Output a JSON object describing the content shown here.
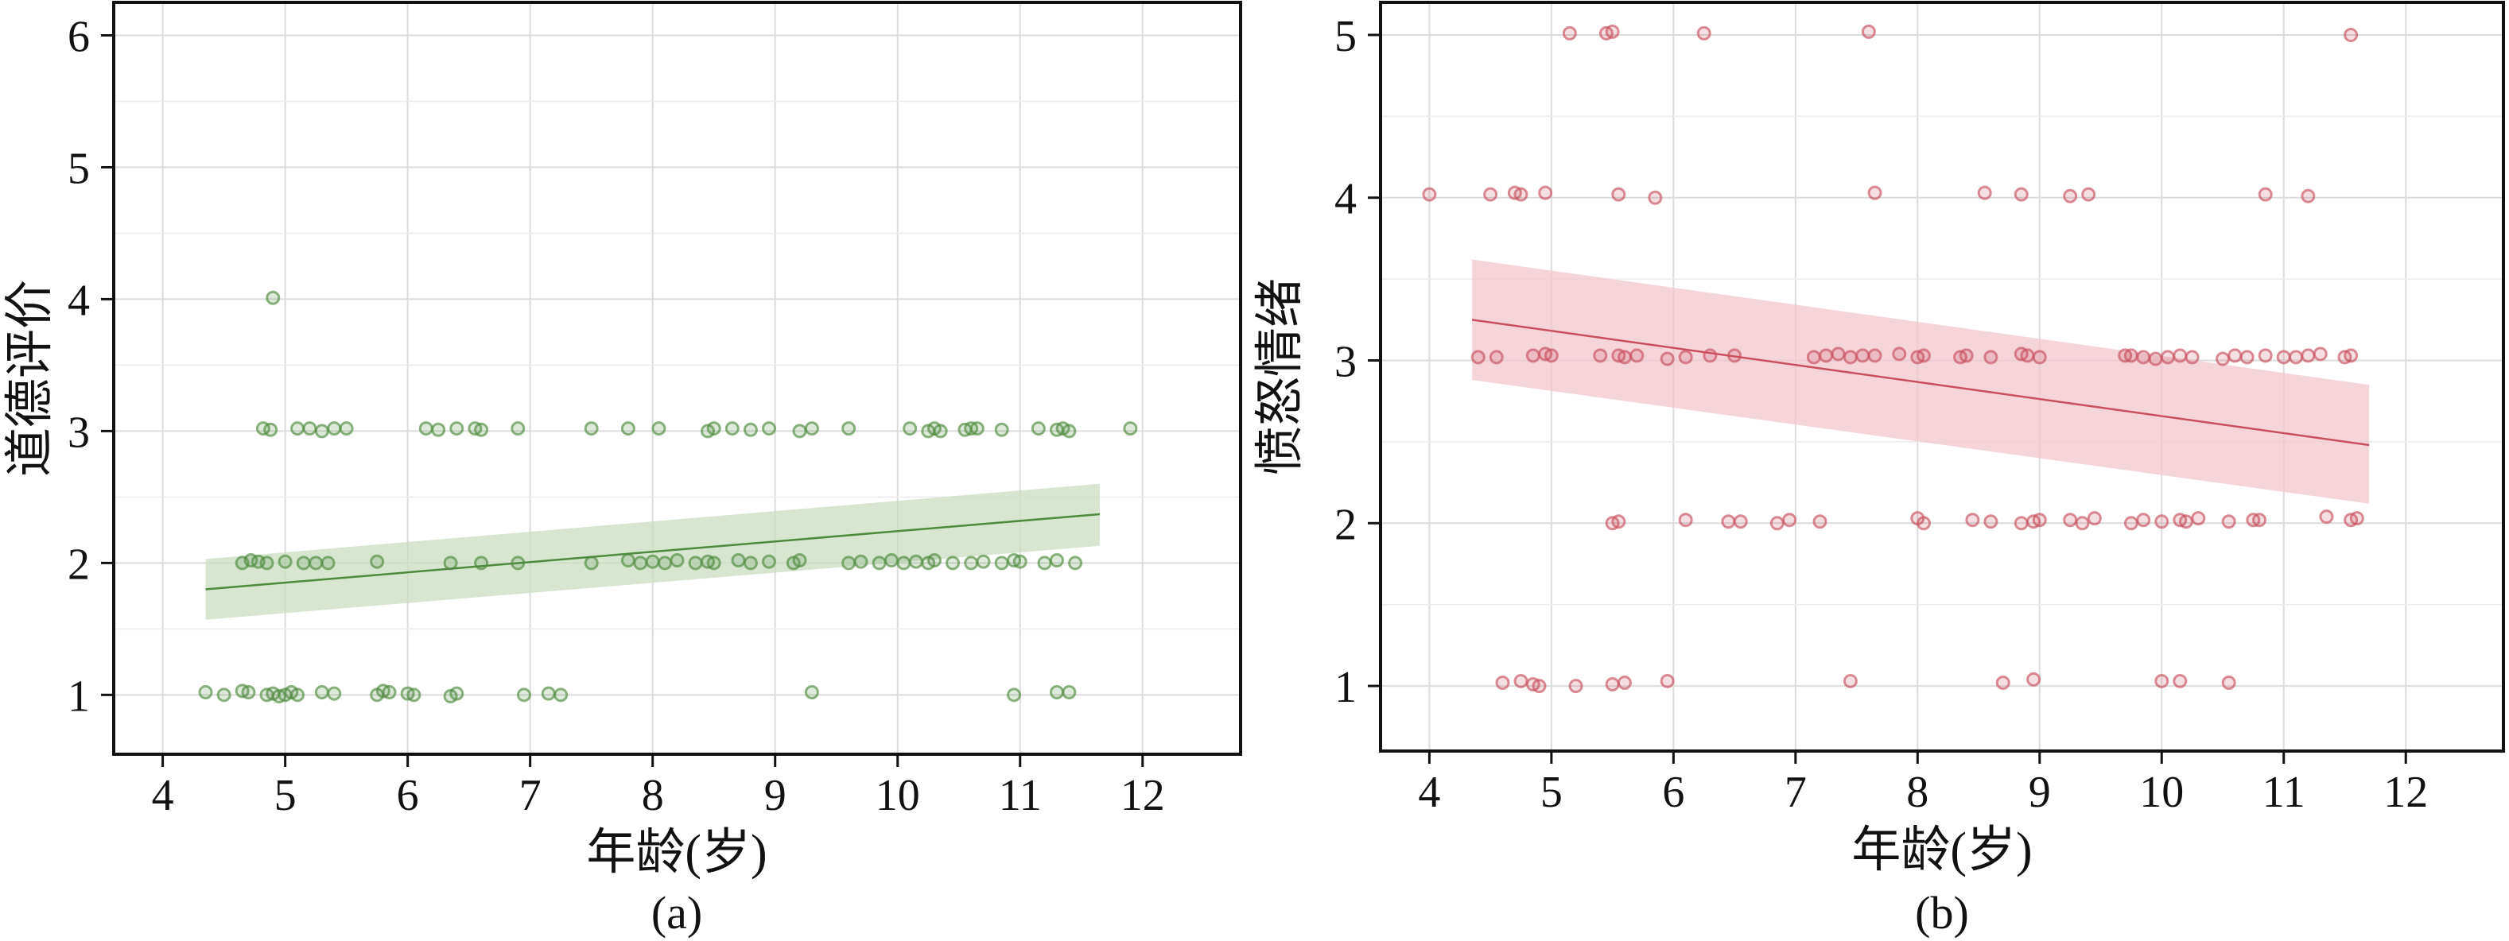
{
  "chart_data": [
    {
      "type": "scatter",
      "panel": "a",
      "caption": "(a)",
      "xlabel": "年龄(岁)",
      "ylabel": "道德评价",
      "xlim": [
        3.6,
        12.8
      ],
      "ylim": [
        0.55,
        6.25
      ],
      "xticks": [
        "4",
        "5",
        "6",
        "7",
        "8",
        "9",
        "10",
        "11",
        "12"
      ],
      "yticks": [
        "1",
        "2",
        "3",
        "4",
        "5",
        "6"
      ],
      "color": "#4e8a3e",
      "band_color": "#c9dcc2",
      "regression": {
        "x": [
          4.35,
          11.65
        ],
        "y": [
          1.8,
          2.37
        ],
        "ci_lower": [
          1.57,
          2.13
        ],
        "ci_upper": [
          2.03,
          2.6
        ]
      },
      "points": [
        [
          4.35,
          1.02
        ],
        [
          4.5,
          1.0
        ],
        [
          4.65,
          1.03
        ],
        [
          4.7,
          1.02
        ],
        [
          4.85,
          1.0
        ],
        [
          4.9,
          1.01
        ],
        [
          4.95,
          0.99
        ],
        [
          5.0,
          1.0
        ],
        [
          5.05,
          1.02
        ],
        [
          5.1,
          1.0
        ],
        [
          5.3,
          1.02
        ],
        [
          5.4,
          1.01
        ],
        [
          5.75,
          1.0
        ],
        [
          5.8,
          1.03
        ],
        [
          5.85,
          1.02
        ],
        [
          6.0,
          1.01
        ],
        [
          6.05,
          1.0
        ],
        [
          6.35,
          0.99
        ],
        [
          6.4,
          1.01
        ],
        [
          6.95,
          1.0
        ],
        [
          7.15,
          1.01
        ],
        [
          7.25,
          1.0
        ],
        [
          9.3,
          1.02
        ],
        [
          10.95,
          1.0
        ],
        [
          11.3,
          1.02
        ],
        [
          11.4,
          1.02
        ],
        [
          4.65,
          2.0
        ],
        [
          4.72,
          2.02
        ],
        [
          4.78,
          2.01
        ],
        [
          4.85,
          2.0
        ],
        [
          5.0,
          2.01
        ],
        [
          5.15,
          2.0
        ],
        [
          5.25,
          2.0
        ],
        [
          5.35,
          2.0
        ],
        [
          5.75,
          2.01
        ],
        [
          6.35,
          2.0
        ],
        [
          6.6,
          2.0
        ],
        [
          6.9,
          2.0
        ],
        [
          7.5,
          2.0
        ],
        [
          7.8,
          2.02
        ],
        [
          7.9,
          2.0
        ],
        [
          8.0,
          2.01
        ],
        [
          8.1,
          2.0
        ],
        [
          8.2,
          2.02
        ],
        [
          8.35,
          2.0
        ],
        [
          8.45,
          2.01
        ],
        [
          8.5,
          2.0
        ],
        [
          8.7,
          2.02
        ],
        [
          8.8,
          2.0
        ],
        [
          8.95,
          2.01
        ],
        [
          9.15,
          2.0
        ],
        [
          9.2,
          2.02
        ],
        [
          9.6,
          2.0
        ],
        [
          9.7,
          2.01
        ],
        [
          9.85,
          2.0
        ],
        [
          9.95,
          2.02
        ],
        [
          10.05,
          2.0
        ],
        [
          10.15,
          2.01
        ],
        [
          10.25,
          2.0
        ],
        [
          10.3,
          2.02
        ],
        [
          10.45,
          2.0
        ],
        [
          10.6,
          2.0
        ],
        [
          10.7,
          2.01
        ],
        [
          10.85,
          2.0
        ],
        [
          10.95,
          2.02
        ],
        [
          11.0,
          2.01
        ],
        [
          11.2,
          2.0
        ],
        [
          11.3,
          2.02
        ],
        [
          11.45,
          2.0
        ],
        [
          4.82,
          3.02
        ],
        [
          4.88,
          3.01
        ],
        [
          5.1,
          3.02
        ],
        [
          5.2,
          3.02
        ],
        [
          5.3,
          3.0
        ],
        [
          5.4,
          3.02
        ],
        [
          5.5,
          3.02
        ],
        [
          6.15,
          3.02
        ],
        [
          6.25,
          3.01
        ],
        [
          6.4,
          3.02
        ],
        [
          6.55,
          3.02
        ],
        [
          6.6,
          3.01
        ],
        [
          6.9,
          3.02
        ],
        [
          7.5,
          3.02
        ],
        [
          7.8,
          3.02
        ],
        [
          8.05,
          3.02
        ],
        [
          8.45,
          3.0
        ],
        [
          8.5,
          3.02
        ],
        [
          8.65,
          3.02
        ],
        [
          8.8,
          3.01
        ],
        [
          8.95,
          3.02
        ],
        [
          9.2,
          3.0
        ],
        [
          9.3,
          3.02
        ],
        [
          9.6,
          3.02
        ],
        [
          10.1,
          3.02
        ],
        [
          10.25,
          3.0
        ],
        [
          10.3,
          3.02
        ],
        [
          10.35,
          3.0
        ],
        [
          10.55,
          3.01
        ],
        [
          10.6,
          3.02
        ],
        [
          10.65,
          3.02
        ],
        [
          10.85,
          3.01
        ],
        [
          11.15,
          3.02
        ],
        [
          11.3,
          3.01
        ],
        [
          11.35,
          3.02
        ],
        [
          11.4,
          3.0
        ],
        [
          11.9,
          3.02
        ],
        [
          4.9,
          4.01
        ]
      ]
    },
    {
      "type": "scatter",
      "panel": "b",
      "caption": "(b)",
      "xlabel": "年龄(岁)",
      "ylabel": "愤怒情绪",
      "xlim": [
        3.6,
        12.8
      ],
      "ylim": [
        0.6,
        5.2
      ],
      "xticks": [
        "4",
        "5",
        "6",
        "7",
        "8",
        "9",
        "10",
        "11",
        "12"
      ],
      "yticks": [
        "1",
        "2",
        "3",
        "4",
        "5"
      ],
      "color": "#c8505f",
      "band_color": "#f2c6cd",
      "regression": {
        "x": [
          4.35,
          11.7
        ],
        "y": [
          3.25,
          2.48
        ],
        "ci_lower": [
          2.88,
          2.12
        ],
        "ci_upper": [
          3.62,
          2.85
        ]
      },
      "points": [
        [
          4.6,
          1.02
        ],
        [
          4.75,
          1.03
        ],
        [
          4.85,
          1.01
        ],
        [
          4.9,
          1.0
        ],
        [
          5.2,
          1.0
        ],
        [
          5.5,
          1.01
        ],
        [
          5.6,
          1.02
        ],
        [
          5.95,
          1.03
        ],
        [
          7.45,
          1.03
        ],
        [
          8.7,
          1.02
        ],
        [
          8.95,
          1.04
        ],
        [
          10.0,
          1.03
        ],
        [
          10.15,
          1.03
        ],
        [
          10.55,
          1.02
        ],
        [
          5.5,
          2.0
        ],
        [
          5.55,
          2.01
        ],
        [
          6.1,
          2.02
        ],
        [
          6.45,
          2.01
        ],
        [
          6.55,
          2.01
        ],
        [
          6.85,
          2.0
        ],
        [
          6.95,
          2.02
        ],
        [
          7.2,
          2.01
        ],
        [
          8.0,
          2.03
        ],
        [
          8.05,
          2.0
        ],
        [
          8.45,
          2.02
        ],
        [
          8.6,
          2.01
        ],
        [
          8.85,
          2.0
        ],
        [
          8.95,
          2.01
        ],
        [
          9.0,
          2.02
        ],
        [
          9.25,
          2.02
        ],
        [
          9.35,
          2.0
        ],
        [
          9.45,
          2.03
        ],
        [
          9.75,
          2.0
        ],
        [
          9.85,
          2.02
        ],
        [
          10.0,
          2.01
        ],
        [
          10.15,
          2.02
        ],
        [
          10.2,
          2.01
        ],
        [
          10.3,
          2.03
        ],
        [
          10.55,
          2.01
        ],
        [
          10.75,
          2.02
        ],
        [
          10.8,
          2.02
        ],
        [
          11.35,
          2.04
        ],
        [
          11.55,
          2.02
        ],
        [
          11.6,
          2.03
        ],
        [
          4.4,
          3.02
        ],
        [
          4.55,
          3.02
        ],
        [
          4.85,
          3.03
        ],
        [
          4.95,
          3.04
        ],
        [
          5.0,
          3.03
        ],
        [
          5.4,
          3.03
        ],
        [
          5.55,
          3.03
        ],
        [
          5.6,
          3.02
        ],
        [
          5.7,
          3.03
        ],
        [
          5.95,
          3.01
        ],
        [
          6.1,
          3.02
        ],
        [
          6.3,
          3.03
        ],
        [
          6.5,
          3.03
        ],
        [
          7.15,
          3.02
        ],
        [
          7.25,
          3.03
        ],
        [
          7.35,
          3.04
        ],
        [
          7.45,
          3.02
        ],
        [
          7.55,
          3.03
        ],
        [
          7.65,
          3.03
        ],
        [
          7.85,
          3.04
        ],
        [
          8.0,
          3.02
        ],
        [
          8.05,
          3.03
        ],
        [
          8.35,
          3.02
        ],
        [
          8.4,
          3.03
        ],
        [
          8.6,
          3.02
        ],
        [
          8.85,
          3.04
        ],
        [
          8.9,
          3.03
        ],
        [
          9.0,
          3.02
        ],
        [
          9.7,
          3.03
        ],
        [
          9.75,
          3.03
        ],
        [
          9.85,
          3.02
        ],
        [
          9.95,
          3.01
        ],
        [
          10.05,
          3.02
        ],
        [
          10.15,
          3.03
        ],
        [
          10.25,
          3.02
        ],
        [
          10.5,
          3.01
        ],
        [
          10.6,
          3.03
        ],
        [
          10.7,
          3.02
        ],
        [
          10.85,
          3.03
        ],
        [
          11.0,
          3.02
        ],
        [
          11.1,
          3.02
        ],
        [
          11.2,
          3.03
        ],
        [
          11.3,
          3.04
        ],
        [
          11.5,
          3.02
        ],
        [
          11.55,
          3.03
        ],
        [
          4.0,
          4.02
        ],
        [
          4.5,
          4.02
        ],
        [
          4.7,
          4.03
        ],
        [
          4.75,
          4.02
        ],
        [
          4.95,
          4.03
        ],
        [
          5.55,
          4.02
        ],
        [
          5.85,
          4.0
        ],
        [
          7.65,
          4.03
        ],
        [
          8.55,
          4.03
        ],
        [
          8.85,
          4.02
        ],
        [
          9.25,
          4.01
        ],
        [
          9.4,
          4.02
        ],
        [
          10.85,
          4.02
        ],
        [
          11.2,
          4.01
        ],
        [
          5.15,
          5.01
        ],
        [
          5.45,
          5.01
        ],
        [
          5.5,
          5.02
        ],
        [
          6.25,
          5.01
        ],
        [
          7.6,
          5.02
        ],
        [
          11.55,
          5.0
        ]
      ]
    }
  ]
}
